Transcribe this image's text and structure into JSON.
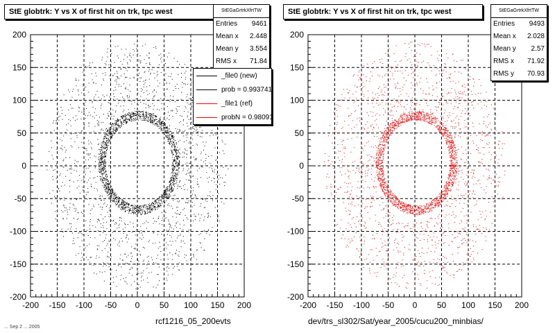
{
  "panels": [
    {
      "id": "left",
      "title": "StE globtrk: Y vs X of first hit on trk, tpc west",
      "stats": {
        "name": "StEGaGrtrkXfrtTW",
        "rows": [
          {
            "label": "Entries",
            "value": "9461"
          },
          {
            "label": "Mean x",
            "value": "2.448"
          },
          {
            "label": "Mean y",
            "value": "3.554"
          },
          {
            "label": "RMS x",
            "value": "71.84"
          }
        ]
      },
      "legend": [
        {
          "label": "_file0 (new)",
          "color": "#000000"
        },
        {
          "label": "prob = 0.993741",
          "color": "#000000"
        },
        {
          "label": "_file1 (ref)",
          "color": "#ff0000"
        },
        {
          "label": "probN = 0.98091",
          "color": "#ff0000"
        }
      ],
      "xtitle": "rcf1216_05_200evts",
      "marker_color": "#000000"
    },
    {
      "id": "right",
      "title": "StE globtrk: Y vs X of first hit on trk, tpc west",
      "stats": {
        "name": "StEGaGrtrkXfrtTW",
        "rows": [
          {
            "label": "Entries",
            "value": "9493"
          },
          {
            "label": "Mean x",
            "value": "2.028"
          },
          {
            "label": "Mean y",
            "value": "2.57"
          },
          {
            "label": "RMS x",
            "value": "71.92"
          },
          {
            "label": "RMS y",
            "value": "70.93"
          }
        ]
      },
      "legend": [],
      "xtitle": "dev/trs_sl302/Sat/year_2005/cucu200_minbias/",
      "marker_color": "#ff0000"
    }
  ],
  "footer_stamp": "... Sep 2 ... 2005",
  "chart_data": [
    {
      "type": "scatter",
      "title": "StE globtrk: Y vs X of first hit on trk, tpc west",
      "xlabel": "rcf1216_05_200evts",
      "ylabel": "",
      "xlim": [
        -200,
        200
      ],
      "ylim": [
        -200,
        200
      ],
      "xticks": [
        -200,
        -150,
        -100,
        -50,
        0,
        50,
        100,
        150,
        200
      ],
      "yticks": [
        -200,
        -150,
        -100,
        -50,
        0,
        50,
        100,
        150,
        200
      ],
      "grid": true,
      "entries": 9461,
      "mean_x": 2.448,
      "mean_y": 3.554,
      "rms_x": 71.84,
      "series": [
        {
          "name": "_file0 (new)",
          "color": "#000000"
        }
      ],
      "inner_ring": {
        "x_range": [
          -60,
          65
        ],
        "y_range": [
          -60,
          70
        ]
      },
      "outer_extent": {
        "x_range": [
          -170,
          170
        ],
        "y_range": [
          -190,
          190
        ]
      }
    },
    {
      "type": "scatter",
      "title": "StE globtrk: Y vs X of first hit on trk, tpc west",
      "xlabel": "dev/trs_sl302/Sat/year_2005/cucu200_minbias/",
      "ylabel": "",
      "xlim": [
        -200,
        200
      ],
      "ylim": [
        -200,
        200
      ],
      "xticks": [
        -200,
        -150,
        -100,
        -50,
        0,
        50,
        100,
        150,
        200
      ],
      "yticks": [
        -200,
        -150,
        -100,
        -50,
        0,
        50,
        100,
        150,
        200
      ],
      "grid": true,
      "entries": 9493,
      "mean_x": 2.028,
      "mean_y": 2.57,
      "rms_x": 71.92,
      "rms_y": 70.93,
      "series": [
        {
          "color": "#ff0000"
        }
      ],
      "inner_ring": {
        "x_range": [
          -60,
          65
        ],
        "y_range": [
          -60,
          70
        ]
      },
      "outer_extent": {
        "x_range": [
          -170,
          170
        ],
        "y_range": [
          -190,
          190
        ]
      }
    }
  ]
}
